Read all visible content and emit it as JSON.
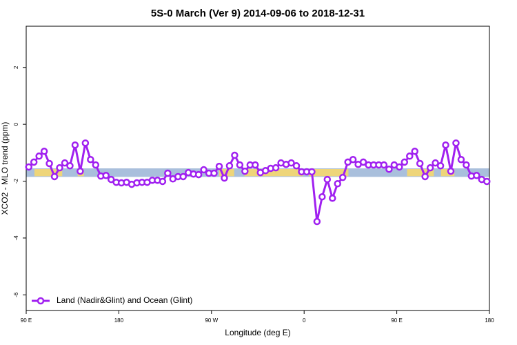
{
  "chart_data": {
    "type": "line",
    "title": "5S-0 March (Ver 9)   2014-09-06 to 2018-12-31",
    "x_label": "Longitude (deg E)",
    "y_label": "XCO2 - MLO trend (ppm)",
    "xlim": [
      90,
      540
    ],
    "ylim": [
      -6.55,
      3.45
    ],
    "xticks": [
      {
        "value": 90,
        "label": "90 E"
      },
      180,
      {
        "value": 270,
        "label": "90 W"
      },
      {
        "value": 360,
        "label": "0"
      },
      {
        "value": 450,
        "label": "90 E"
      },
      {
        "value": 540,
        "label": "180"
      }
    ],
    "yticks": [
      2,
      0,
      -2,
      -4,
      -6
    ],
    "band": {
      "ylim": [
        -1.85,
        -1.55
      ],
      "color": "#a9bfdc",
      "land_color": "#f5d76e",
      "land_x": [
        [
          98,
          125
        ],
        [
          140,
          146
        ],
        [
          277.5,
          292
        ],
        [
          302,
          359
        ],
        [
          364.5,
          403
        ],
        [
          460,
          486
        ],
        [
          493,
          506
        ]
      ]
    },
    "legend": "bottom-left",
    "x": [
      92.5,
      97.5,
      102.5,
      107.5,
      112.5,
      117.5,
      122.5,
      127.5,
      132.5,
      137.5,
      142.5,
      147.5,
      152.5,
      157.5,
      162.5,
      167.5,
      172.5,
      177.5,
      182.5,
      187.5,
      192.5,
      197.5,
      202.5,
      207.5,
      212.5,
      217.5,
      222.5,
      227.5,
      232.5,
      237.5,
      242.5,
      247.5,
      252.5,
      257.5,
      262.5,
      267.5,
      272.5,
      277.5,
      282.5,
      287.5,
      292.5,
      297.5,
      302.5,
      307.5,
      312.5,
      317.5,
      322.5,
      327.5,
      332.5,
      337.5,
      342.5,
      347.5,
      352.5,
      357.5,
      362.5,
      367.5,
      372.5,
      377.5,
      382.5,
      387.5,
      392.5,
      397.5,
      402.5,
      407.5,
      412.5,
      417.5,
      422.5,
      427.5,
      432.5,
      437.5,
      442.5,
      447.5,
      452.5,
      457.5,
      462.5,
      467.5,
      472.5,
      477.5,
      482.5,
      487.5,
      492.5,
      497.5,
      502.5,
      507.5,
      512.5,
      517.5,
      522.5,
      527.5,
      532.5,
      537.5
    ],
    "series": [
      {
        "name": "Land (Nadir&Glint) and Ocean (Glint)",
        "color": "#a020f0",
        "values": [
          -1.5,
          -1.33,
          -1.12,
          -0.95,
          -1.38,
          -1.84,
          -1.53,
          -1.36,
          -1.46,
          -0.73,
          -1.65,
          -0.66,
          -1.24,
          -1.43,
          -1.82,
          -1.8,
          -1.94,
          -2.04,
          -2.06,
          -2.04,
          -2.11,
          -2.06,
          -2.04,
          -2.04,
          -1.97,
          -1.97,
          -2.01,
          -1.72,
          -1.92,
          -1.84,
          -1.84,
          -1.7,
          -1.75,
          -1.77,
          -1.6,
          -1.72,
          -1.72,
          -1.48,
          -1.89,
          -1.46,
          -1.09,
          -1.43,
          -1.65,
          -1.43,
          -1.43,
          -1.7,
          -1.63,
          -1.55,
          -1.53,
          -1.36,
          -1.41,
          -1.36,
          -1.46,
          -1.67,
          -1.67,
          -1.67,
          -3.42,
          -2.55,
          -1.94,
          -2.6,
          -2.09,
          -1.87,
          -1.33,
          -1.24,
          -1.41,
          -1.33,
          -1.43,
          -1.43,
          -1.43,
          -1.43,
          -1.58,
          -1.43,
          -1.5,
          -1.33,
          -1.12,
          -0.95,
          -1.38,
          -1.84,
          -1.53,
          -1.36,
          -1.46,
          -0.73,
          -1.65,
          -0.66,
          -1.24,
          -1.43,
          -1.82,
          -1.8,
          -1.94,
          -2.01
        ]
      }
    ]
  }
}
